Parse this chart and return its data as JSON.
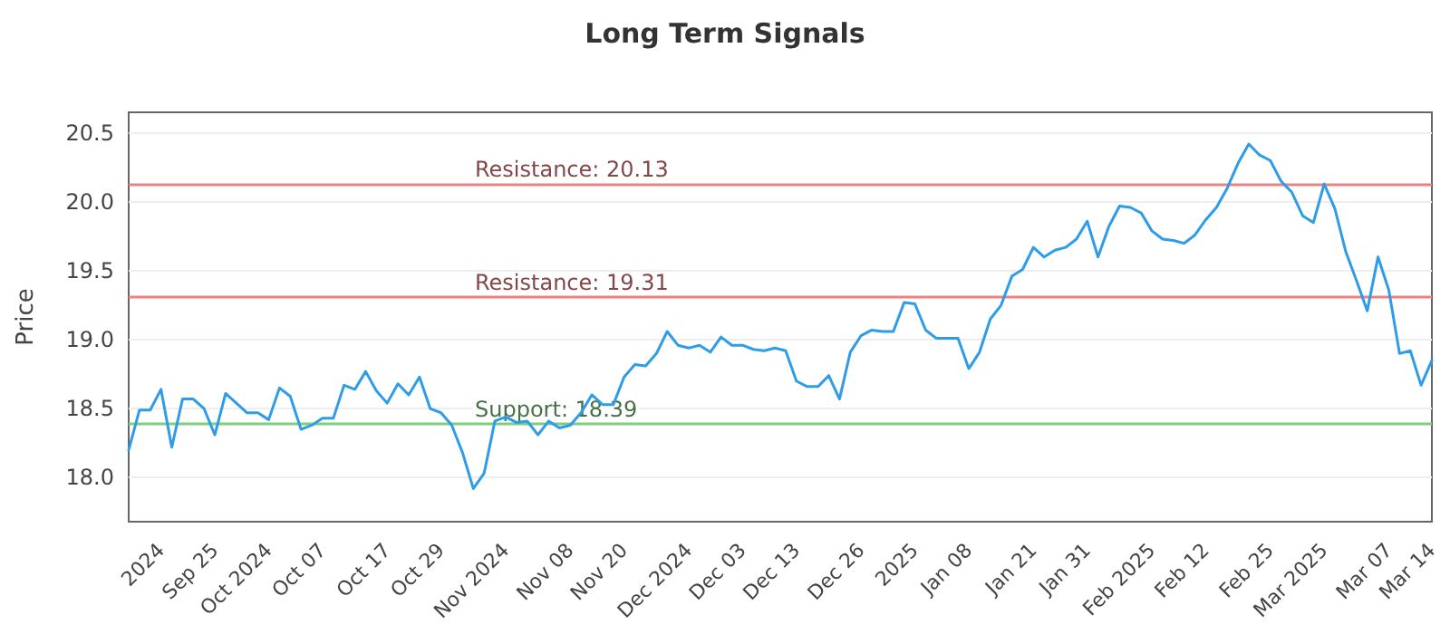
{
  "chart_data": {
    "type": "line",
    "title": "Long Term Signals",
    "ylabel": "Price",
    "categories": [
      null,
      null,
      null,
      "2024",
      null,
      null,
      null,
      null,
      "Sep 25",
      null,
      null,
      null,
      null,
      "Oct 2024",
      null,
      null,
      null,
      null,
      "Oct 07",
      null,
      null,
      null,
      null,
      null,
      "Oct 17",
      null,
      null,
      null,
      null,
      "Oct 29",
      null,
      null,
      null,
      null,
      null,
      "Nov 2024",
      null,
      null,
      null,
      null,
      null,
      "Nov 08",
      null,
      null,
      null,
      null,
      "Nov 20",
      null,
      null,
      null,
      null,
      null,
      "Dec 2024",
      null,
      null,
      null,
      null,
      "Dec 03",
      null,
      null,
      null,
      null,
      "Dec 13",
      null,
      null,
      null,
      null,
      null,
      "Dec 26",
      null,
      null,
      null,
      null,
      "2025",
      null,
      null,
      null,
      null,
      "Jan 08",
      null,
      null,
      null,
      null,
      null,
      "Jan 21",
      null,
      null,
      null,
      null,
      "Jan 31",
      null,
      null,
      null,
      null,
      null,
      "Feb 2025",
      null,
      null,
      null,
      null,
      "Feb 12",
      null,
      null,
      null,
      null,
      null,
      "Feb 25",
      null,
      null,
      null,
      null,
      "Mar 2025",
      null,
      null,
      null,
      null,
      null,
      "Mar 07",
      null,
      null,
      null,
      "Mar 14"
    ],
    "series": [
      {
        "color": "#2f9ce8",
        "values": [
          18.2,
          18.49,
          18.49,
          18.64,
          18.22,
          18.57,
          18.57,
          18.5,
          18.31,
          18.61,
          18.54,
          18.47,
          18.47,
          18.42,
          18.65,
          18.59,
          18.35,
          18.38,
          18.43,
          18.43,
          18.67,
          18.64,
          18.77,
          18.63,
          18.54,
          18.68,
          18.6,
          18.73,
          18.5,
          18.47,
          18.38,
          18.18,
          17.92,
          18.03,
          18.41,
          18.44,
          18.4,
          18.41,
          18.31,
          18.41,
          18.36,
          18.38,
          18.47,
          18.6,
          18.53,
          18.53,
          18.73,
          18.82,
          18.81,
          18.9,
          19.06,
          18.96,
          18.94,
          18.96,
          18.91,
          19.02,
          18.96,
          18.96,
          18.93,
          18.92,
          18.94,
          18.92,
          18.7,
          18.66,
          18.66,
          18.74,
          18.57,
          18.91,
          19.03,
          19.07,
          19.06,
          19.06,
          19.27,
          19.26,
          19.07,
          19.01,
          19.01,
          19.01,
          18.79,
          18.91,
          19.15,
          19.25,
          19.46,
          19.51,
          19.67,
          19.6,
          19.65,
          19.67,
          19.73,
          19.86,
          19.6,
          19.82,
          19.97,
          19.96,
          19.92,
          19.79,
          19.73,
          19.72,
          19.7,
          19.76,
          19.87,
          19.96,
          20.1,
          20.28,
          20.42,
          20.34,
          20.3,
          20.15,
          20.07,
          19.9,
          19.85,
          20.13,
          19.95,
          19.64,
          19.43,
          19.21,
          19.6,
          19.36,
          18.9,
          18.92,
          18.67,
          18.85
        ]
      }
    ],
    "ylim": [
      17.68,
      20.65
    ],
    "yticks": [
      {
        "value": 18,
        "label": "18.0"
      },
      18.5,
      {
        "value": 19,
        "label": "19.0"
      },
      19.5,
      {
        "value": 20,
        "label": "20.0"
      },
      20.5
    ],
    "grid": "y",
    "marker": "none",
    "line_style": "solid",
    "ref_lines": [
      {
        "axis": "y",
        "value": 20.13,
        "label": "Resistance: 20.13",
        "color": "#f08080"
      },
      {
        "axis": "y",
        "value": 19.31,
        "label": "Resistance: 19.31",
        "color": "#f08080"
      },
      {
        "axis": "y",
        "value": 18.39,
        "label": "Support: 18.39",
        "color": "#80cc80"
      }
    ]
  }
}
